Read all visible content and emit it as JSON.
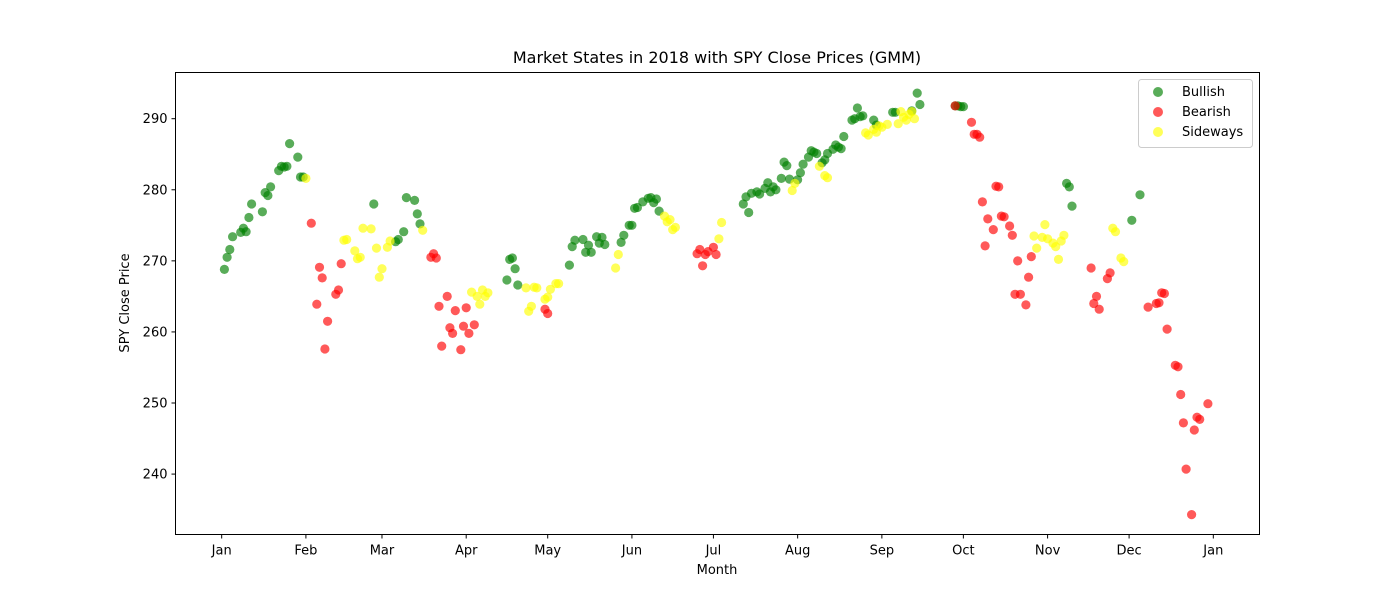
{
  "chart_data": {
    "type": "scatter",
    "title": "Market States in 2018 with SPY Close Prices (GMM)",
    "xlabel": "Month",
    "ylabel": "SPY Close Price",
    "x_ticks": [
      "Jan",
      "Feb",
      "Mar",
      "Apr",
      "May",
      "Jun",
      "Jul",
      "Aug",
      "Sep",
      "Oct",
      "Nov",
      "Dec",
      "Jan"
    ],
    "x_tick_days": [
      0,
      31,
      59,
      90,
      120,
      151,
      181,
      212,
      243,
      273,
      304,
      334,
      365
    ],
    "x_axis_unit": "day of 2018 (0 = Jan 1)",
    "xlim": [
      -17,
      382
    ],
    "ylim": [
      231.5,
      296.5
    ],
    "y_ticks": [
      240,
      250,
      260,
      270,
      280,
      290
    ],
    "grid": false,
    "legend_position": "top-right",
    "series": [
      {
        "name": "Bullish",
        "color": "#008000",
        "opacity": 0.65,
        "points": [
          [
            1,
            268.8
          ],
          [
            2,
            270.5
          ],
          [
            3,
            271.6
          ],
          [
            4,
            273.4
          ],
          [
            7,
            274.0
          ],
          [
            8,
            274.6
          ],
          [
            9,
            274.1
          ],
          [
            10,
            276.1
          ],
          [
            11,
            278.0
          ],
          [
            15,
            276.9
          ],
          [
            16,
            279.6
          ],
          [
            17,
            279.2
          ],
          [
            18,
            280.4
          ],
          [
            21,
            282.7
          ],
          [
            22,
            283.3
          ],
          [
            23,
            283.2
          ],
          [
            24,
            283.3
          ],
          [
            25,
            286.5
          ],
          [
            28,
            284.6
          ],
          [
            29,
            281.8
          ],
          [
            30,
            281.8
          ],
          [
            56,
            278.0
          ],
          [
            64,
            272.7
          ],
          [
            65,
            273.0
          ],
          [
            67,
            274.1
          ],
          [
            68,
            278.9
          ],
          [
            71,
            278.5
          ],
          [
            72,
            276.6
          ],
          [
            73,
            275.2
          ],
          [
            105,
            267.3
          ],
          [
            106,
            270.2
          ],
          [
            107,
            270.4
          ],
          [
            108,
            268.9
          ],
          [
            109,
            266.6
          ],
          [
            128,
            269.4
          ],
          [
            129,
            272.0
          ],
          [
            130,
            272.9
          ],
          [
            133,
            273.0
          ],
          [
            134,
            271.2
          ],
          [
            135,
            272.2
          ],
          [
            136,
            271.2
          ],
          [
            138,
            273.4
          ],
          [
            139,
            272.5
          ],
          [
            140,
            273.3
          ],
          [
            141,
            272.3
          ],
          [
            147,
            272.6
          ],
          [
            148,
            273.6
          ],
          [
            150,
            275.0
          ],
          [
            151,
            275.0
          ],
          [
            152,
            277.4
          ],
          [
            153,
            277.5
          ],
          [
            155,
            278.3
          ],
          [
            157,
            278.8
          ],
          [
            158,
            278.9
          ],
          [
            159,
            278.2
          ],
          [
            160,
            278.7
          ],
          [
            161,
            277.0
          ],
          [
            192,
            278.0
          ],
          [
            193,
            279.0
          ],
          [
            194,
            276.8
          ],
          [
            195,
            279.5
          ],
          [
            197,
            279.7
          ],
          [
            198,
            279.4
          ],
          [
            200,
            280.2
          ],
          [
            201,
            281.0
          ],
          [
            202,
            279.7
          ],
          [
            203,
            280.4
          ],
          [
            204,
            280.0
          ],
          [
            206,
            281.6
          ],
          [
            207,
            283.9
          ],
          [
            208,
            283.4
          ],
          [
            209,
            281.5
          ],
          [
            212,
            281.4
          ],
          [
            213,
            282.4
          ],
          [
            214,
            283.6
          ],
          [
            216,
            284.6
          ],
          [
            217,
            285.5
          ],
          [
            218,
            285.3
          ],
          [
            219,
            285.1
          ],
          [
            221,
            283.8
          ],
          [
            222,
            284.2
          ],
          [
            223,
            285.1
          ],
          [
            225,
            285.7
          ],
          [
            226,
            286.3
          ],
          [
            227,
            286.0
          ],
          [
            228,
            285.8
          ],
          [
            229,
            287.5
          ],
          [
            232,
            289.8
          ],
          [
            233,
            290.0
          ],
          [
            234,
            291.5
          ],
          [
            235,
            290.3
          ],
          [
            236,
            290.4
          ],
          [
            240,
            289.8
          ],
          [
            241,
            289.1
          ],
          [
            247,
            290.9
          ],
          [
            248,
            290.9
          ],
          [
            254,
            291.1
          ],
          [
            256,
            293.6
          ],
          [
            257,
            292.0
          ],
          [
            270,
            291.8
          ],
          [
            271,
            291.8
          ],
          [
            272,
            291.7
          ],
          [
            273,
            291.7
          ],
          [
            311,
            280.9
          ],
          [
            312,
            280.4
          ],
          [
            313,
            277.7
          ],
          [
            335,
            275.7
          ],
          [
            338,
            279.3
          ]
        ]
      },
      {
        "name": "Bearish",
        "color": "#ff0000",
        "opacity": 0.65,
        "points": [
          [
            33,
            275.3
          ],
          [
            35,
            263.9
          ],
          [
            36,
            269.1
          ],
          [
            37,
            267.6
          ],
          [
            38,
            257.6
          ],
          [
            39,
            261.5
          ],
          [
            42,
            265.3
          ],
          [
            43,
            265.9
          ],
          [
            44,
            269.6
          ],
          [
            77,
            270.5
          ],
          [
            78,
            271.0
          ],
          [
            79,
            270.4
          ],
          [
            80,
            263.6
          ],
          [
            81,
            258.0
          ],
          [
            83,
            265.0
          ],
          [
            84,
            260.6
          ],
          [
            85,
            259.8
          ],
          [
            86,
            263.0
          ],
          [
            88,
            257.5
          ],
          [
            89,
            260.8
          ],
          [
            90,
            263.4
          ],
          [
            91,
            259.8
          ],
          [
            93,
            261.0
          ],
          [
            119,
            263.2
          ],
          [
            120,
            262.6
          ],
          [
            175,
            271.0
          ],
          [
            176,
            271.6
          ],
          [
            177,
            269.3
          ],
          [
            178,
            270.9
          ],
          [
            179,
            271.3
          ],
          [
            181,
            271.9
          ],
          [
            182,
            270.9
          ],
          [
            280,
            278.3
          ],
          [
            281,
            272.1
          ],
          [
            282,
            275.9
          ],
          [
            284,
            274.4
          ],
          [
            285,
            280.5
          ],
          [
            286,
            280.4
          ],
          [
            287,
            276.3
          ],
          [
            288,
            276.2
          ],
          [
            290,
            274.9
          ],
          [
            291,
            273.6
          ],
          [
            292,
            265.3
          ],
          [
            293,
            270.0
          ],
          [
            294,
            265.3
          ],
          [
            296,
            263.8
          ],
          [
            297,
            267.7
          ],
          [
            298,
            270.6
          ],
          [
            270,
            291.8
          ],
          [
            276,
            289.5
          ],
          [
            277,
            287.8
          ],
          [
            279,
            287.4
          ],
          [
            278,
            287.8
          ],
          [
            320,
            269.0
          ],
          [
            321,
            264.0
          ],
          [
            322,
            265.0
          ],
          [
            323,
            263.2
          ],
          [
            326,
            267.5
          ],
          [
            327,
            268.3
          ],
          [
            341,
            263.5
          ],
          [
            344,
            264.0
          ],
          [
            345,
            264.1
          ],
          [
            346,
            265.5
          ],
          [
            347,
            265.4
          ],
          [
            348,
            260.4
          ],
          [
            351,
            255.3
          ],
          [
            352,
            255.1
          ],
          [
            353,
            251.2
          ],
          [
            354,
            247.2
          ],
          [
            355,
            240.7
          ],
          [
            357,
            234.3
          ],
          [
            358,
            246.2
          ],
          [
            359,
            248.0
          ],
          [
            360,
            247.7
          ],
          [
            363,
            249.9
          ]
        ]
      },
      {
        "name": "Sideways",
        "color": "#ffff00",
        "opacity": 0.65,
        "points": [
          [
            31,
            281.6
          ],
          [
            45,
            272.9
          ],
          [
            46,
            273.0
          ],
          [
            49,
            271.4
          ],
          [
            50,
            270.3
          ],
          [
            51,
            270.5
          ],
          [
            52,
            274.6
          ],
          [
            55,
            274.5
          ],
          [
            57,
            271.8
          ],
          [
            58,
            267.7
          ],
          [
            59,
            268.9
          ],
          [
            61,
            271.9
          ],
          [
            62,
            272.8
          ],
          [
            74,
            274.3
          ],
          [
            94,
            265.0
          ],
          [
            95,
            263.9
          ],
          [
            96,
            265.9
          ],
          [
            97,
            265.0
          ],
          [
            98,
            265.5
          ],
          [
            92,
            265.6
          ],
          [
            112,
            266.2
          ],
          [
            113,
            262.9
          ],
          [
            114,
            263.6
          ],
          [
            115,
            266.3
          ],
          [
            116,
            266.2
          ],
          [
            119,
            264.6
          ],
          [
            120,
            264.9
          ],
          [
            121,
            266.0
          ],
          [
            123,
            266.8
          ],
          [
            124,
            266.8
          ],
          [
            145,
            269.0
          ],
          [
            146,
            270.9
          ],
          [
            163,
            276.3
          ],
          [
            164,
            275.5
          ],
          [
            165,
            275.8
          ],
          [
            166,
            274.4
          ],
          [
            167,
            274.7
          ],
          [
            183,
            273.1
          ],
          [
            184,
            275.4
          ],
          [
            210,
            279.9
          ],
          [
            211,
            280.9
          ],
          [
            220,
            283.3
          ],
          [
            222,
            282.0
          ],
          [
            223,
            281.7
          ],
          [
            237,
            288.0
          ],
          [
            238,
            287.7
          ],
          [
            240,
            288.5
          ],
          [
            241,
            288.1
          ],
          [
            242,
            289.0
          ],
          [
            243,
            288.8
          ],
          [
            245,
            289.2
          ],
          [
            249,
            289.3
          ],
          [
            250,
            291.0
          ],
          [
            251,
            290.2
          ],
          [
            252,
            289.8
          ],
          [
            253,
            290.6
          ],
          [
            254,
            291.0
          ],
          [
            255,
            290.0
          ],
          [
            299,
            273.5
          ],
          [
            300,
            271.8
          ],
          [
            302,
            273.3
          ],
          [
            303,
            275.1
          ],
          [
            304,
            273.1
          ],
          [
            306,
            272.5
          ],
          [
            307,
            272.0
          ],
          [
            308,
            270.2
          ],
          [
            309,
            272.8
          ],
          [
            310,
            273.6
          ],
          [
            328,
            274.6
          ],
          [
            329,
            274.1
          ],
          [
            331,
            270.4
          ],
          [
            332,
            269.9
          ]
        ]
      }
    ]
  }
}
